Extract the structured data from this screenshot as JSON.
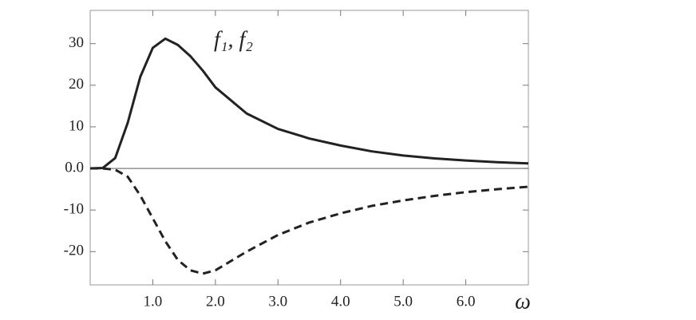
{
  "chart_data": {
    "type": "line",
    "annotation": "f₁, f₂",
    "x_label": "ω",
    "x": [
      0,
      0.2,
      0.4,
      0.6,
      0.8,
      1.0,
      1.2,
      1.4,
      1.6,
      1.8,
      2.0,
      2.5,
      3.0,
      3.5,
      4.0,
      4.5,
      5.0,
      5.5,
      6.0,
      6.5,
      7.0
    ],
    "series": [
      {
        "color": "#222222",
        "dash": false,
        "values": [
          0,
          0.1,
          2.5,
          11,
          22,
          29,
          31.2,
          29.7,
          27,
          23.5,
          19.5,
          13.2,
          9.5,
          7.2,
          5.5,
          4.1,
          3.1,
          2.4,
          1.9,
          1.5,
          1.2
        ]
      },
      {
        "color": "#222222",
        "dash": true,
        "values": [
          0,
          0,
          -0.3,
          -2,
          -6.5,
          -12,
          -17.5,
          -22,
          -24.5,
          -25.3,
          -24.5,
          -20,
          -16,
          -13,
          -10.8,
          -9,
          -7.7,
          -6.6,
          -5.7,
          -5.0,
          -4.4
        ]
      }
    ],
    "xlim": [
      0,
      7
    ],
    "ylim": [
      -28,
      38
    ],
    "xticks": [
      {
        "value": 1,
        "label": "1.0"
      },
      {
        "value": 2,
        "label": "2.0"
      },
      {
        "value": 3,
        "label": "3.0"
      },
      {
        "value": 4,
        "label": "4.0"
      },
      {
        "value": 5,
        "label": "5.0"
      },
      {
        "value": 6,
        "label": "6.0"
      }
    ],
    "yticks": [
      -20,
      -10,
      {
        "value": 0,
        "label": "0.0"
      },
      10,
      20,
      30
    ]
  }
}
